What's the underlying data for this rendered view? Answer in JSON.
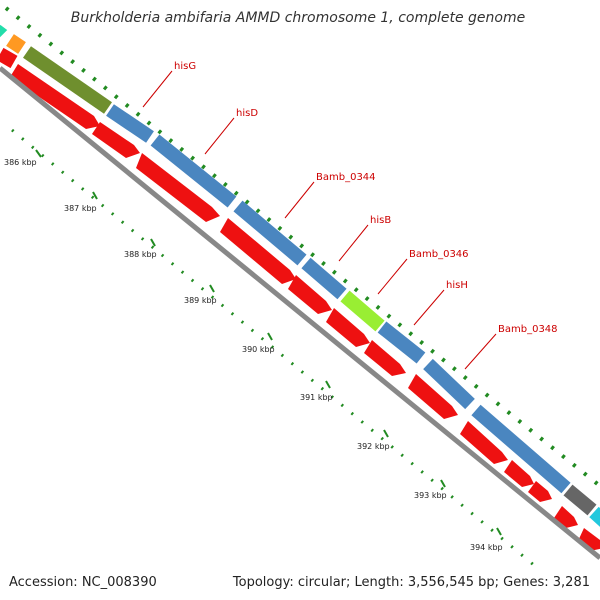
{
  "title": "Burkholderia ambifaria AMMD chromosome 1, complete genome",
  "footer": {
    "accession": "Accession: NC_008390",
    "stats": "Topology: circular; Length: 3,556,545 bp; Genes: 3,281"
  },
  "gene_labels": [
    "hisG",
    "hisD",
    "Bamb_0344",
    "hisB",
    "Bamb_0346",
    "hisH",
    "Bamb_0348"
  ],
  "kbp_labels": [
    "386 kbp",
    "387 kbp",
    "388 kbp",
    "389 kbp",
    "390 kbp",
    "391 kbp",
    "392 kbp",
    "393 kbp",
    "394 kbp"
  ],
  "colors": {
    "forward_gene": "#4a86c0",
    "reverse_gene": "#ee1111",
    "olive_gene": "#6f8f2e",
    "lime_gene": "#99ee33",
    "gray_gene": "#666666",
    "backbone": "#888888",
    "tick": "#228b22",
    "label_line": "#cc0000"
  }
}
